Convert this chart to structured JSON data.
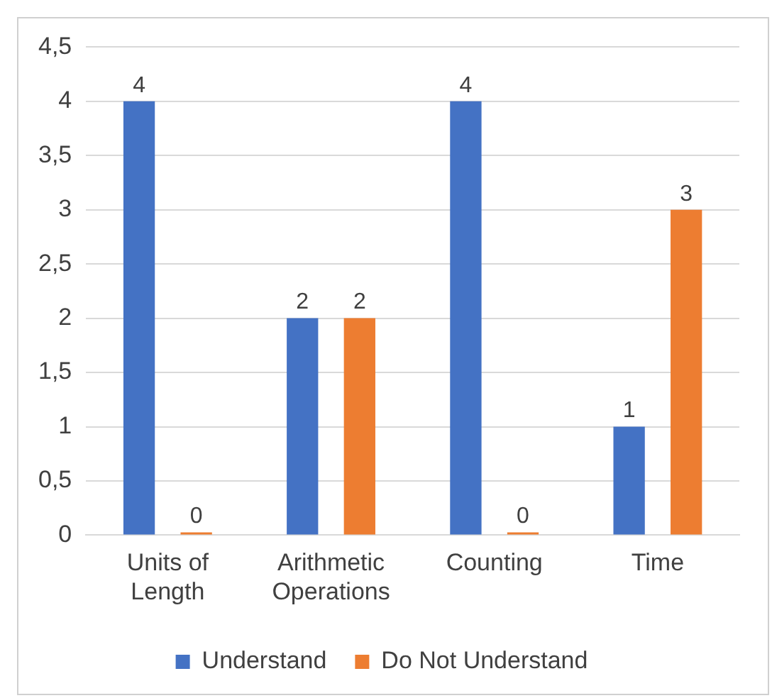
{
  "chart_data": {
    "type": "bar",
    "categories": [
      "Units of Length",
      "Arithmetic Operations",
      "Counting",
      "Time"
    ],
    "series": [
      {
        "name": "Understand",
        "color": "#4472c4",
        "values": [
          4,
          2,
          4,
          1
        ]
      },
      {
        "name": "Do Not Understand",
        "color": "#ed7d31",
        "values": [
          0,
          2,
          0,
          3
        ]
      }
    ],
    "ylim": [
      0,
      4.5
    ],
    "yticks": [
      0,
      {
        "value": 0.5,
        "label": "0,5"
      },
      1,
      {
        "value": 1.5,
        "label": "1,5"
      },
      2,
      {
        "value": 2.5,
        "label": "2,5"
      },
      3,
      {
        "value": 3.5,
        "label": "3,5"
      },
      4,
      {
        "value": 4.5,
        "label": "4,5"
      }
    ],
    "grid": "y",
    "legend": "bottom",
    "data_labels": true
  }
}
